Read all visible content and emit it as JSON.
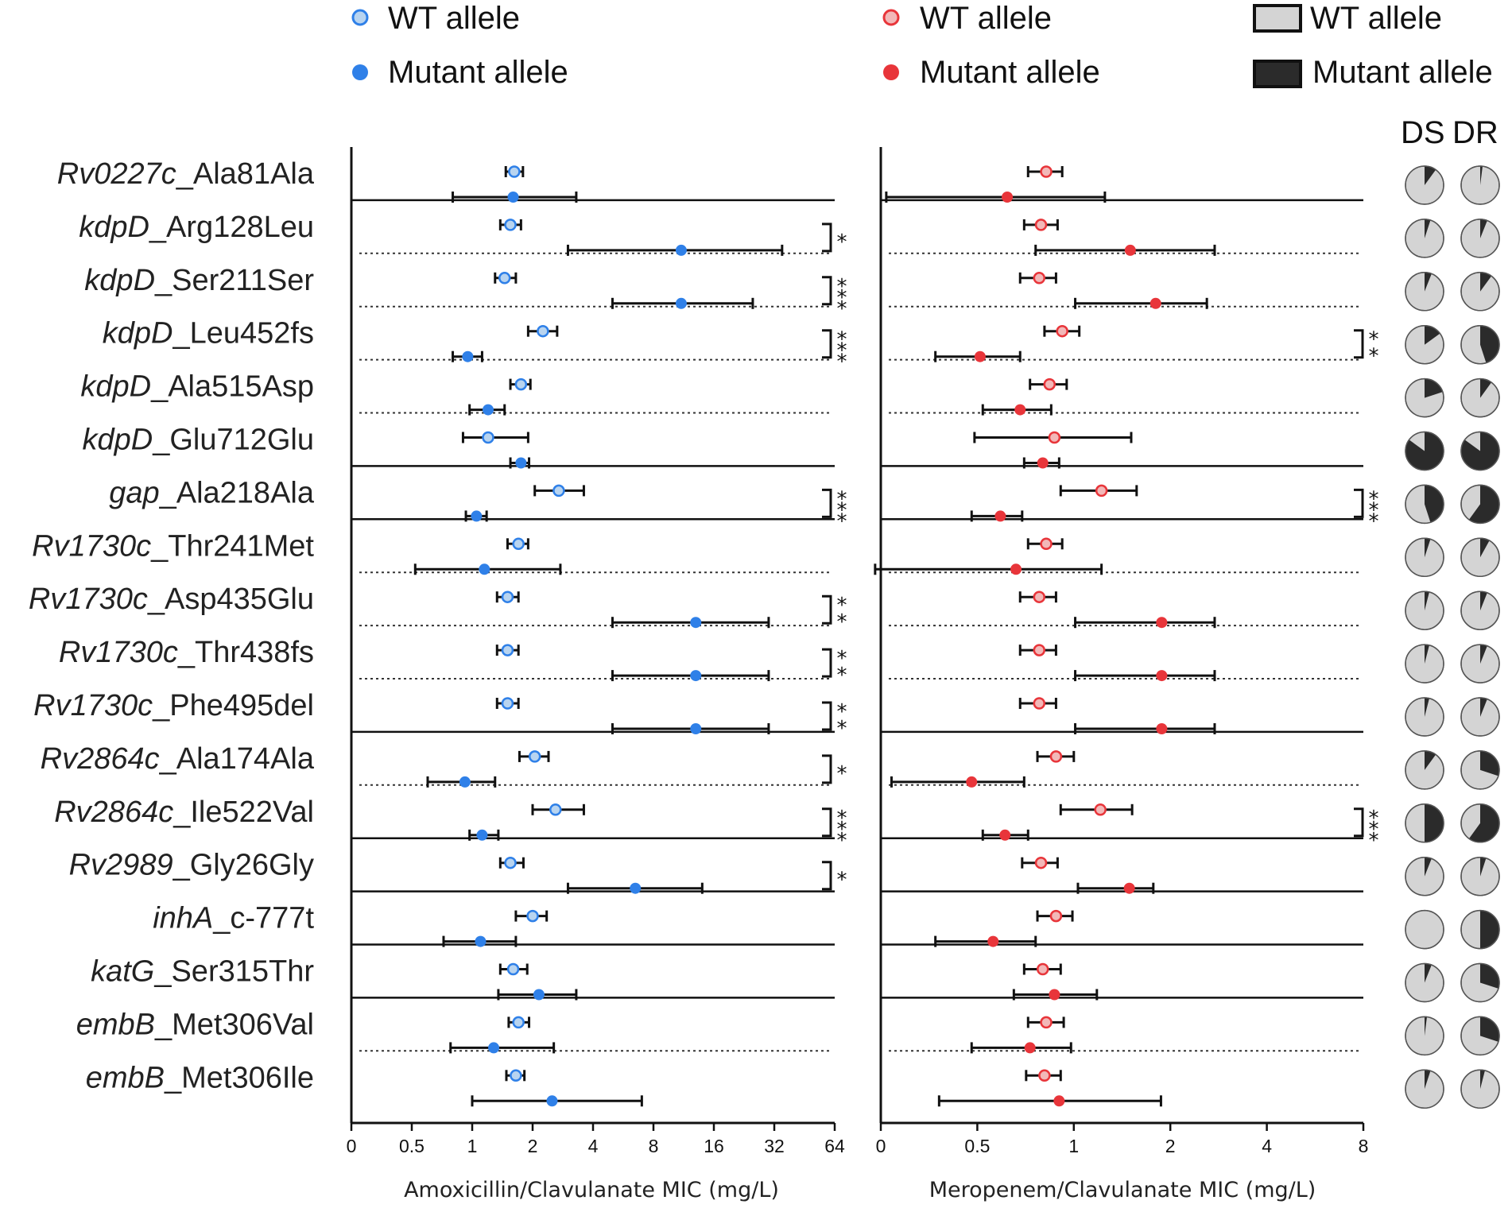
{
  "chart_data": {
    "type": "forest-plot",
    "legends": [
      {
        "wt_label": "WT allele",
        "mut_label": "Mutant allele",
        "wt_color": "#b8d4f0",
        "wt_edge": "#2f80e8",
        "mut_color": "#2f80e8"
      },
      {
        "wt_label": "WT allele",
        "mut_label": "Mutant allele",
        "wt_color": "#f2b8b8",
        "wt_edge": "#e8353a",
        "mut_color": "#e8353a"
      },
      {
        "wt_label": "WT allele",
        "mut_label": "Mutant allele",
        "wt_color": "#d4d4d4",
        "wt_edge": "#111111",
        "mut_color": "#2b2b2b"
      }
    ],
    "pie_headers": [
      "DS",
      "DR"
    ],
    "panels": [
      {
        "name": "amoxicillin",
        "xlabel": "Amoxicillin/Clavulanate MIC (mg/L)",
        "ticks": [
          "0",
          "0.5",
          "1",
          "2",
          "4",
          "8",
          "16",
          "32",
          "64"
        ],
        "scale": "log2, 0 mapped at one step below 0.5",
        "wt_color": "#b8d4f0",
        "mut_color": "#2f80e8",
        "edge_color": "#2f80e8"
      },
      {
        "name": "meropenem",
        "xlabel": "Meropenem/Clavulanate MIC (mg/L)",
        "ticks": [
          "0",
          "0.5",
          "1",
          "2",
          "4",
          "8"
        ],
        "scale": "log2, 0 mapped at one step below 0.5",
        "wt_color": "#f2b8b8",
        "mut_color": "#e8353a",
        "edge_color": "#e8353a"
      }
    ],
    "rows": [
      {
        "gene": "Rv0227c",
        "variant": "_Ala81Ala",
        "sep": "none",
        "amx": {
          "wt": [
            1.62,
            1.47,
            1.79
          ],
          "mut": [
            1.6,
            0.8,
            3.3
          ],
          "sig": ""
        },
        "mer": {
          "wt": [
            0.82,
            0.72,
            0.92
          ],
          "mut": [
            0.62,
            0.26,
            1.25
          ],
          "sig": ""
        },
        "pie": [
          0.1,
          0.02
        ]
      },
      {
        "gene": "kdpD",
        "variant": "_Arg128Leu",
        "sep": "solid",
        "amx": {
          "wt": [
            1.55,
            1.38,
            1.75
          ],
          "mut": [
            11,
            3.0,
            35
          ],
          "sig": "*"
        },
        "mer": {
          "wt": [
            0.79,
            0.7,
            0.89
          ],
          "mut": [
            1.5,
            0.76,
            2.75
          ],
          "sig": ""
        },
        "pie": [
          0.05,
          0.06
        ]
      },
      {
        "gene": "kdpD",
        "variant": "_Ser211Ser",
        "sep": "dotted",
        "amx": {
          "wt": [
            1.45,
            1.3,
            1.65
          ],
          "mut": [
            11,
            5.0,
            25
          ],
          "sig": "***"
        },
        "mer": {
          "wt": [
            0.78,
            0.68,
            0.88
          ],
          "mut": [
            1.8,
            1.01,
            2.6
          ],
          "sig": ""
        },
        "pie": [
          0.06,
          0.1
        ]
      },
      {
        "gene": "kdpD",
        "variant": "_Leu452fs",
        "sep": "dotted",
        "amx": {
          "wt": [
            2.25,
            1.9,
            2.65
          ],
          "mut": [
            0.95,
            0.8,
            1.12
          ],
          "sig": "***"
        },
        "mer": {
          "wt": [
            0.92,
            0.81,
            1.04
          ],
          "mut": [
            0.51,
            0.37,
            0.68
          ],
          "sig": "**"
        },
        "pie": [
          0.15,
          0.45
        ]
      },
      {
        "gene": "kdpD",
        "variant": "_Ala515Asp",
        "sep": "dotted",
        "amx": {
          "wt": [
            1.75,
            1.55,
            1.95
          ],
          "mut": [
            1.2,
            0.97,
            1.45
          ],
          "sig": ""
        },
        "mer": {
          "wt": [
            0.84,
            0.73,
            0.95
          ],
          "mut": [
            0.68,
            0.52,
            0.85
          ],
          "sig": ""
        },
        "pie": [
          0.2,
          0.1
        ]
      },
      {
        "gene": "kdpD",
        "variant": "_Glu712Glu",
        "sep": "dotted",
        "amx": {
          "wt": [
            1.2,
            0.9,
            1.9
          ],
          "mut": [
            1.75,
            1.55,
            1.92
          ],
          "sig": ""
        },
        "mer": {
          "wt": [
            0.87,
            0.49,
            1.51
          ],
          "mut": [
            0.8,
            0.7,
            0.9
          ],
          "sig": ""
        },
        "pie": [
          0.85,
          0.85
        ]
      },
      {
        "gene": "gap",
        "variant": "_Ala218Ala",
        "sep": "solid",
        "amx": {
          "wt": [
            2.7,
            2.05,
            3.6
          ],
          "mut": [
            1.05,
            0.93,
            1.18
          ],
          "sig": "***"
        },
        "mer": {
          "wt": [
            1.22,
            0.91,
            1.57
          ],
          "mut": [
            0.59,
            0.48,
            0.69
          ],
          "sig": "***"
        },
        "pie": [
          0.45,
          0.6
        ]
      },
      {
        "gene": "Rv1730c",
        "variant": "_Thr241Met",
        "sep": "solid",
        "amx": {
          "wt": [
            1.7,
            1.5,
            1.9
          ],
          "mut": [
            1.15,
            0.52,
            2.75
          ],
          "sig": ""
        },
        "mer": {
          "wt": [
            0.82,
            0.72,
            0.92
          ],
          "mut": [
            0.66,
            0.24,
            1.22
          ],
          "sig": ""
        },
        "pie": [
          0.05,
          0.08
        ]
      },
      {
        "gene": "Rv1730c",
        "variant": "_Asp435Glu",
        "sep": "dotted",
        "amx": {
          "wt": [
            1.5,
            1.33,
            1.7
          ],
          "mut": [
            13,
            5.0,
            30
          ],
          "sig": "**"
        },
        "mer": {
          "wt": [
            0.78,
            0.68,
            0.88
          ],
          "mut": [
            1.88,
            1.01,
            2.75
          ],
          "sig": ""
        },
        "pie": [
          0.04,
          0.06
        ]
      },
      {
        "gene": "Rv1730c",
        "variant": "_Thr438fs",
        "sep": "dotted",
        "amx": {
          "wt": [
            1.5,
            1.33,
            1.7
          ],
          "mut": [
            13,
            5.0,
            30
          ],
          "sig": "**"
        },
        "mer": {
          "wt": [
            0.78,
            0.68,
            0.88
          ],
          "mut": [
            1.88,
            1.01,
            2.75
          ],
          "sig": ""
        },
        "pie": [
          0.04,
          0.06
        ]
      },
      {
        "gene": "Rv1730c",
        "variant": "_Phe495del",
        "sep": "dotted",
        "amx": {
          "wt": [
            1.5,
            1.33,
            1.7
          ],
          "mut": [
            13,
            5.0,
            30
          ],
          "sig": "**"
        },
        "mer": {
          "wt": [
            0.78,
            0.68,
            0.88
          ],
          "mut": [
            1.88,
            1.01,
            2.75
          ],
          "sig": ""
        },
        "pie": [
          0.04,
          0.06
        ]
      },
      {
        "gene": "Rv2864c",
        "variant": "_Ala174Ala",
        "sep": "solid",
        "amx": {
          "wt": [
            2.05,
            1.72,
            2.4
          ],
          "mut": [
            0.92,
            0.6,
            1.3
          ],
          "sig": "*"
        },
        "mer": {
          "wt": [
            0.88,
            0.77,
            1.0
          ],
          "mut": [
            0.48,
            0.27,
            0.7
          ],
          "sig": ""
        },
        "pie": [
          0.1,
          0.3
        ]
      },
      {
        "gene": "Rv2864c",
        "variant": "_Ile522Val",
        "sep": "dotted",
        "amx": {
          "wt": [
            2.6,
            2.0,
            3.6
          ],
          "mut": [
            1.12,
            0.97,
            1.35
          ],
          "sig": "***"
        },
        "mer": {
          "wt": [
            1.21,
            0.91,
            1.52
          ],
          "mut": [
            0.61,
            0.52,
            0.72
          ],
          "sig": "***"
        },
        "pie": [
          0.5,
          0.6
        ]
      },
      {
        "gene": "Rv2989",
        "variant": "_Gly26Gly",
        "sep": "solid",
        "amx": {
          "wt": [
            1.55,
            1.38,
            1.8
          ],
          "mut": [
            6.5,
            3.0,
            14
          ],
          "sig": "*"
        },
        "mer": {
          "wt": [
            0.79,
            0.69,
            0.89
          ],
          "mut": [
            1.49,
            1.03,
            1.77
          ],
          "sig": ""
        },
        "pie": [
          0.06,
          0.05
        ]
      },
      {
        "gene": "inhA",
        "variant": "_c-777t",
        "sep": "solid",
        "amx": {
          "wt": [
            2.0,
            1.65,
            2.35
          ],
          "mut": [
            1.1,
            0.72,
            1.65
          ],
          "sig": ""
        },
        "mer": {
          "wt": [
            0.88,
            0.77,
            0.99
          ],
          "mut": [
            0.56,
            0.37,
            0.76
          ],
          "sig": ""
        },
        "pie": [
          0.0,
          0.5
        ]
      },
      {
        "gene": "katG",
        "variant": "_Ser315Thr",
        "sep": "solid",
        "amx": {
          "wt": [
            1.6,
            1.38,
            1.88
          ],
          "mut": [
            2.15,
            1.35,
            3.3
          ],
          "sig": ""
        },
        "mer": {
          "wt": [
            0.8,
            0.7,
            0.91
          ],
          "mut": [
            0.87,
            0.65,
            1.18
          ],
          "sig": ""
        },
        "pie": [
          0.06,
          0.3
        ]
      },
      {
        "gene": "embB",
        "variant": "_Met306Val",
        "sep": "solid",
        "amx": {
          "wt": [
            1.7,
            1.52,
            1.92
          ],
          "mut": [
            1.28,
            0.78,
            2.55
          ],
          "sig": ""
        },
        "mer": {
          "wt": [
            0.82,
            0.72,
            0.93
          ],
          "mut": [
            0.73,
            0.48,
            0.98
          ],
          "sig": ""
        },
        "pie": [
          0.02,
          0.3
        ]
      },
      {
        "gene": "embB",
        "variant": "_Met306Ile",
        "sep": "dotted",
        "amx": {
          "wt": [
            1.65,
            1.48,
            1.82
          ],
          "mut": [
            2.5,
            1.0,
            7.0
          ],
          "sig": ""
        },
        "mer": {
          "wt": [
            0.81,
            0.71,
            0.91
          ],
          "mut": [
            0.9,
            0.38,
            1.87
          ],
          "sig": ""
        },
        "pie": [
          0.05,
          0.04
        ]
      }
    ]
  }
}
